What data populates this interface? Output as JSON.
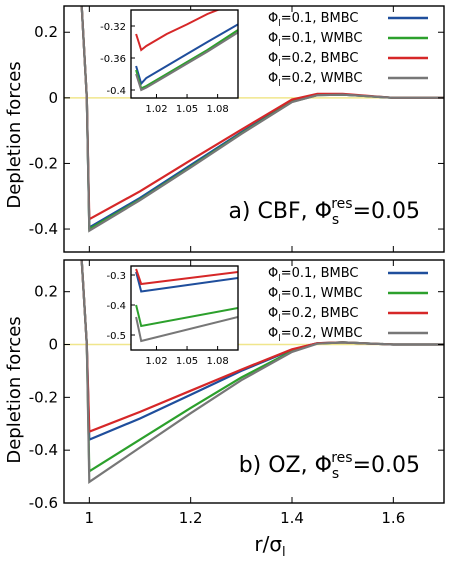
{
  "y_axis_label": "Depletion forces",
  "x_axis_label": "r/σ",
  "x_axis_label_sub": "l",
  "legend": [
    {
      "phi": "Φ",
      "sub": "l",
      "rest": "=0.1,  BMBC",
      "color": "#1f4e9c"
    },
    {
      "phi": "Φ",
      "sub": "l",
      "rest": "=0.1,   WMBC",
      "color": "#2ca02c"
    },
    {
      "phi": "Φ",
      "sub": "l",
      "rest": "=0.2,  BMBC",
      "color": "#d62728"
    },
    {
      "phi": "Φ",
      "sub": "l",
      "rest": "=0.2,   WMBC",
      "color": "#777777"
    }
  ],
  "panels": [
    {
      "label_prefix": "a) CBF, ",
      "label_phi": "Φ",
      "label_sub": "s",
      "label_sup": "res",
      "label_suffix": "=0.05"
    },
    {
      "label_prefix": "b) OZ, ",
      "label_phi": "Φ",
      "label_sub": "s",
      "label_sup": "res",
      "label_suffix": "=0.05"
    }
  ],
  "chart_data": [
    {
      "type": "line",
      "panel": "a",
      "xlim": [
        0.95,
        1.7
      ],
      "ylim": [
        -0.47,
        0.28
      ],
      "x_ticks": [],
      "y_ticks": [
        0.2,
        0,
        -0.2,
        -0.4
      ],
      "y_tick_labels": [
        "0.2",
        "0",
        "-0.2",
        "-0.4"
      ],
      "reference_line": {
        "y": 0,
        "color": "#f0e68c"
      },
      "series": [
        {
          "name": "Φl=0.1, BMBC",
          "color": "#1f4e9c",
          "x": [
            0.985,
            0.995,
            1.0,
            1.1,
            1.2,
            1.3,
            1.4,
            1.45,
            1.5,
            1.55,
            1.6,
            1.7
          ],
          "y": [
            0.28,
            0.0,
            -0.395,
            -0.305,
            -0.205,
            -0.105,
            -0.01,
            0.01,
            0.01,
            0.005,
            0.0,
            0.0
          ]
        },
        {
          "name": "Φl=0.1, WMBC",
          "color": "#2ca02c",
          "x": [
            0.985,
            0.995,
            1.0,
            1.1,
            1.2,
            1.3,
            1.4,
            1.45,
            1.5,
            1.55,
            1.6,
            1.7
          ],
          "y": [
            0.28,
            0.0,
            -0.4,
            -0.31,
            -0.21,
            -0.108,
            -0.012,
            0.008,
            0.01,
            0.005,
            0.0,
            0.0
          ]
        },
        {
          "name": "Φl=0.2, BMBC",
          "color": "#d62728",
          "x": [
            0.985,
            0.995,
            1.0,
            1.1,
            1.2,
            1.3,
            1.4,
            1.45,
            1.5,
            1.55,
            1.6,
            1.7
          ],
          "y": [
            0.28,
            0.0,
            -0.37,
            -0.285,
            -0.19,
            -0.097,
            -0.005,
            0.012,
            0.012,
            0.006,
            0.0,
            0.0
          ]
        },
        {
          "name": "Φl=0.2, WMBC",
          "color": "#777777",
          "x": [
            0.985,
            0.995,
            1.0,
            1.1,
            1.2,
            1.3,
            1.4,
            1.45,
            1.5,
            1.55,
            1.6,
            1.7
          ],
          "y": [
            0.28,
            0.0,
            -0.405,
            -0.312,
            -0.212,
            -0.11,
            -0.013,
            0.008,
            0.01,
            0.005,
            0.0,
            0.0
          ]
        }
      ],
      "inset": {
        "xlim": [
          0.995,
          1.1
        ],
        "ylim": [
          -0.41,
          -0.3
        ],
        "x_ticks": [
          1.02,
          1.05,
          1.08
        ],
        "x_tick_labels": [
          "1.02",
          "1.05",
          "1.08"
        ],
        "y_ticks": [
          -0.32,
          -0.36,
          -0.4
        ],
        "y_tick_labels": [
          "-0.32",
          "-0.36",
          "-0.4"
        ],
        "series": [
          {
            "color": "#1f4e9c",
            "x": [
              1.0,
              1.005,
              1.01,
              1.03,
              1.05,
              1.07,
              1.1
            ],
            "y": [
              -0.37,
              -0.392,
              -0.385,
              -0.37,
              -0.355,
              -0.34,
              -0.318
            ]
          },
          {
            "color": "#2ca02c",
            "x": [
              1.0,
              1.005,
              1.01,
              1.03,
              1.05,
              1.07,
              1.1
            ],
            "y": [
              -0.375,
              -0.398,
              -0.395,
              -0.38,
              -0.365,
              -0.35,
              -0.325
            ]
          },
          {
            "color": "#d62728",
            "x": [
              1.0,
              1.005,
              1.01,
              1.03,
              1.05,
              1.07,
              1.1
            ],
            "y": [
              -0.33,
              -0.35,
              -0.345,
              -0.33,
              -0.318,
              -0.305,
              -0.29
            ]
          },
          {
            "color": "#777777",
            "x": [
              1.0,
              1.005,
              1.01,
              1.03,
              1.05,
              1.07,
              1.1
            ],
            "y": [
              -0.38,
              -0.4,
              -0.397,
              -0.382,
              -0.367,
              -0.352,
              -0.328
            ]
          }
        ]
      }
    },
    {
      "type": "line",
      "panel": "b",
      "xlim": [
        0.95,
        1.7
      ],
      "ylim": [
        -0.6,
        0.32
      ],
      "x_ticks": [
        1.0,
        1.2,
        1.4,
        1.6
      ],
      "x_tick_labels": [
        "1",
        "1.2",
        "1.4",
        "1.6"
      ],
      "y_ticks": [
        0.2,
        0,
        -0.2,
        -0.4,
        -0.6
      ],
      "y_tick_labels": [
        "0.2",
        "0",
        "-0.2",
        "-0.4",
        "-0.6"
      ],
      "reference_line": {
        "y": 0,
        "color": "#f0e68c"
      },
      "series": [
        {
          "name": "Φl=0.1, BMBC",
          "color": "#1f4e9c",
          "x": [
            0.985,
            0.995,
            1.0,
            1.1,
            1.2,
            1.3,
            1.4,
            1.45,
            1.5,
            1.55,
            1.6,
            1.7
          ],
          "y": [
            0.32,
            0.0,
            -0.36,
            -0.28,
            -0.19,
            -0.1,
            -0.02,
            0.005,
            0.008,
            0.004,
            0.0,
            0.0
          ]
        },
        {
          "name": "Φl=0.1, WMBC",
          "color": "#2ca02c",
          "x": [
            0.985,
            0.995,
            1.0,
            1.1,
            1.2,
            1.3,
            1.4,
            1.45,
            1.5,
            1.55,
            1.6,
            1.7
          ],
          "y": [
            0.32,
            0.0,
            -0.48,
            -0.36,
            -0.24,
            -0.125,
            -0.025,
            0.004,
            0.008,
            0.004,
            0.0,
            0.0
          ]
        },
        {
          "name": "Φl=0.2, BMBC",
          "color": "#d62728",
          "x": [
            0.985,
            0.995,
            1.0,
            1.1,
            1.2,
            1.3,
            1.4,
            1.45,
            1.5,
            1.55,
            1.6,
            1.7
          ],
          "y": [
            0.32,
            0.0,
            -0.33,
            -0.255,
            -0.175,
            -0.095,
            -0.018,
            0.005,
            0.008,
            0.004,
            0.0,
            0.0
          ]
        },
        {
          "name": "Φl=0.2, WMBC",
          "color": "#777777",
          "x": [
            0.985,
            0.995,
            1.0,
            1.1,
            1.2,
            1.3,
            1.4,
            1.45,
            1.5,
            1.55,
            1.6,
            1.7
          ],
          "y": [
            0.32,
            0.0,
            -0.52,
            -0.39,
            -0.26,
            -0.135,
            -0.028,
            0.003,
            0.008,
            0.004,
            0.0,
            0.0
          ]
        }
      ],
      "inset": {
        "xlim": [
          0.995,
          1.1
        ],
        "ylim": [
          -0.55,
          -0.27
        ],
        "x_ticks": [
          1.02,
          1.05,
          1.08
        ],
        "x_tick_labels": [
          "1.02",
          "1.05",
          "1.08"
        ],
        "y_ticks": [
          -0.3,
          -0.4,
          -0.5
        ],
        "y_tick_labels": [
          "-0.3",
          "-0.4",
          "-0.5"
        ],
        "series": [
          {
            "color": "#1f4e9c",
            "x": [
              1.0,
              1.005,
              1.1
            ],
            "y": [
              -0.29,
              -0.355,
              -0.31
            ]
          },
          {
            "color": "#2ca02c",
            "x": [
              1.0,
              1.005,
              1.1
            ],
            "y": [
              -0.4,
              -0.47,
              -0.41
            ]
          },
          {
            "color": "#d62728",
            "x": [
              1.0,
              1.005,
              1.1
            ],
            "y": [
              -0.28,
              -0.33,
              -0.29
            ]
          },
          {
            "color": "#777777",
            "x": [
              1.0,
              1.005,
              1.1
            ],
            "y": [
              -0.44,
              -0.52,
              -0.44
            ]
          }
        ]
      }
    }
  ]
}
